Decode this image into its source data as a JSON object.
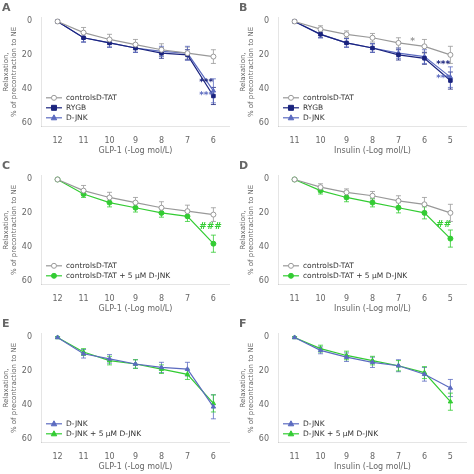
{
  "chart_data": [
    {
      "type": "line",
      "title": "A",
      "xlabel": "GLP-1 (-Log mol/L)",
      "ylabel": "Relaxation,\n% of precontraction to NE",
      "x": [
        12,
        11,
        10,
        9,
        8,
        7,
        6
      ],
      "xlim": [
        12.6,
        5.4
      ],
      "xticks": [
        12,
        11,
        10,
        9,
        8,
        7,
        6
      ],
      "ylim": [
        62,
        -2
      ],
      "yticks": [
        0,
        20,
        40,
        60
      ],
      "grid": false,
      "legend": "lower left",
      "series": [
        {
          "name": "controlsD-TAT",
          "color": "#999999",
          "marker": "circle-open",
          "line_style": "solid",
          "values": [
            0.5,
            7,
            11,
            14,
            17,
            19,
            21
          ],
          "yerr": [
            0.5,
            3,
            3,
            3,
            3.5,
            3.5,
            4
          ]
        },
        {
          "name": "RYGB",
          "color": "#1a237e",
          "marker": "square",
          "line_style": "solid",
          "values": [
            0.5,
            10,
            13,
            16,
            19,
            20,
            44
          ],
          "yerr": [
            0.5,
            2.5,
            2.5,
            2.5,
            3,
            3,
            5
          ]
        },
        {
          "name": "D-JNK",
          "color": "#5c6bc0",
          "marker": "triangle",
          "line_style": "solid",
          "values": [
            0.5,
            10,
            13,
            16,
            18,
            19,
            41
          ],
          "yerr": [
            0.5,
            2.5,
            2.5,
            2.5,
            3,
            4,
            7
          ]
        }
      ],
      "annotations": [
        {
          "text": "***",
          "x": 6.55,
          "y": 36,
          "color": "#1a237e"
        },
        {
          "text": "***",
          "x": 6.55,
          "y": 44,
          "color": "#5c6bc0"
        }
      ]
    },
    {
      "type": "line",
      "title": "B",
      "xlabel": "Insulin (-Log mol/L)",
      "ylabel": "Relaxation,\n% of precontraction to NE",
      "x": [
        11,
        10,
        9,
        8,
        7,
        6,
        5
      ],
      "xlim": [
        11.6,
        4.4
      ],
      "xticks": [
        11,
        10,
        9,
        8,
        7,
        6,
        5
      ],
      "ylim": [
        62,
        -2
      ],
      "yticks": [
        0,
        20,
        40,
        60
      ],
      "grid": false,
      "legend": "lower left",
      "series": [
        {
          "name": "controlsD-TAT",
          "color": "#999999",
          "marker": "circle-open",
          "line_style": "solid",
          "values": [
            0.5,
            5,
            8,
            10,
            13,
            15,
            20
          ],
          "yerr": [
            0.5,
            2,
            2,
            2.5,
            3,
            4,
            5
          ]
        },
        {
          "name": "RYGB",
          "color": "#1a237e",
          "marker": "square",
          "line_style": "solid",
          "values": [
            0.5,
            8,
            13,
            16,
            20,
            22,
            35
          ],
          "yerr": [
            0.5,
            2,
            2.5,
            2.5,
            3,
            3.5,
            5
          ]
        },
        {
          "name": "D-JNK",
          "color": "#5c6bc0",
          "marker": "triangle",
          "line_style": "solid",
          "values": [
            0.5,
            8,
            13,
            16,
            19,
            21,
            33
          ],
          "yerr": [
            0.5,
            2,
            2.5,
            2.5,
            3,
            4,
            6
          ]
        }
      ],
      "annotations": [
        {
          "text": "*",
          "x": 6.55,
          "y": 12,
          "color": "#999999"
        },
        {
          "text": "***",
          "x": 5.55,
          "y": 26,
          "color": "#1a237e"
        },
        {
          "text": "***",
          "x": 5.55,
          "y": 34,
          "color": "#5c6bc0"
        }
      ]
    },
    {
      "type": "line",
      "title": "C",
      "xlabel": "GLP-1 (-Log mol/L)",
      "ylabel": "Relaxation,\n% of precontraction to NE",
      "x": [
        12,
        11,
        10,
        9,
        8,
        7,
        6
      ],
      "xlim": [
        12.6,
        5.4
      ],
      "xticks": [
        12,
        11,
        10,
        9,
        8,
        7,
        6
      ],
      "ylim": [
        62,
        -2
      ],
      "yticks": [
        0,
        20,
        40,
        60
      ],
      "grid": false,
      "legend": "lower left",
      "series": [
        {
          "name": "controlsD-TAT",
          "color": "#999999",
          "marker": "circle-open",
          "line_style": "solid",
          "values": [
            0.5,
            7,
            11,
            14,
            17,
            19,
            21
          ],
          "yerr": [
            0.5,
            3,
            3,
            3,
            3.5,
            3.5,
            4
          ]
        },
        {
          "name": "controlsD-TAT + 5 μM D-JNK",
          "color": "#33cc33",
          "marker": "circle",
          "line_style": "solid",
          "values": [
            0.5,
            9,
            14,
            17,
            20,
            22,
            38
          ],
          "yerr": [
            0.5,
            2,
            2.5,
            2.5,
            2.5,
            3,
            5
          ]
        }
      ],
      "annotations": [
        {
          "text": "###",
          "x": 6.55,
          "y": 28,
          "color": "#33cc33"
        }
      ]
    },
    {
      "type": "line",
      "title": "D",
      "xlabel": "Insulin (-Log mol/L)",
      "ylabel": "Relaxation,\n% of precontraction to NE",
      "x": [
        11,
        10,
        9,
        8,
        7,
        6,
        5
      ],
      "xlim": [
        11.6,
        4.4
      ],
      "xticks": [
        11,
        10,
        9,
        8,
        7,
        6,
        5
      ],
      "ylim": [
        62,
        -2
      ],
      "yticks": [
        0,
        20,
        40,
        60
      ],
      "grid": false,
      "legend": "lower left",
      "series": [
        {
          "name": "controlsD-TAT",
          "color": "#999999",
          "marker": "circle-open",
          "line_style": "solid",
          "values": [
            0.5,
            5,
            8,
            10,
            13,
            15,
            20
          ],
          "yerr": [
            0.5,
            2,
            2,
            2.5,
            3,
            4,
            5
          ]
        },
        {
          "name": "controlsD-TAT + 5 μM D-JNK",
          "color": "#33cc33",
          "marker": "circle",
          "line_style": "solid",
          "values": [
            0.5,
            7,
            11,
            14,
            17,
            20,
            35
          ],
          "yerr": [
            0.5,
            2,
            2.5,
            2.5,
            3,
            3.5,
            5
          ]
        }
      ],
      "annotations": [
        {
          "text": "##",
          "x": 5.55,
          "y": 27,
          "color": "#33cc33"
        }
      ]
    },
    {
      "type": "line",
      "title": "E",
      "xlabel": "GLP-1 (-Log mol/L)",
      "ylabel": "Relaxation,\n% of precontraction to NE",
      "x": [
        12,
        11,
        10,
        9,
        8,
        7,
        6
      ],
      "xlim": [
        12.6,
        5.4
      ],
      "xticks": [
        12,
        11,
        10,
        9,
        8,
        7,
        6
      ],
      "ylim": [
        62,
        -2
      ],
      "yticks": [
        0,
        20,
        40,
        60
      ],
      "grid": false,
      "legend": "lower left",
      "series": [
        {
          "name": "D-JNK",
          "color": "#5c6bc0",
          "marker": "triangle",
          "line_style": "solid",
          "values": [
            0.5,
            10,
            13,
            16,
            18,
            19,
            41
          ],
          "yerr": [
            0.5,
            2.5,
            2.5,
            2.5,
            3,
            4,
            7
          ]
        },
        {
          "name": "D-JNK + 5 μM D-JNK",
          "color": "#33cc33",
          "marker": "triangle",
          "line_style": "solid",
          "values": [
            0.5,
            9,
            14,
            16,
            19,
            22,
            39
          ],
          "yerr": [
            0.5,
            2,
            2.5,
            2.5,
            2.5,
            3,
            5
          ]
        }
      ],
      "annotations": []
    },
    {
      "type": "line",
      "title": "F",
      "xlabel": "Insulin (-Log mol/L)",
      "ylabel": "Relaxation,\n% of precontraction to NE",
      "x": [
        11,
        10,
        9,
        8,
        7,
        6,
        5
      ],
      "xlim": [
        11.6,
        4.4
      ],
      "xticks": [
        11,
        10,
        9,
        8,
        7,
        6,
        5
      ],
      "ylim": [
        62,
        -2
      ],
      "yticks": [
        0,
        20,
        40,
        60
      ],
      "grid": false,
      "legend": "lower left",
      "series": [
        {
          "name": "D-JNK",
          "color": "#5c6bc0",
          "marker": "triangle",
          "line_style": "solid",
          "values": [
            0.5,
            8,
            12,
            15,
            17,
            22,
            30
          ],
          "yerr": [
            0.5,
            2,
            2.5,
            3,
            3.5,
            4,
            5
          ]
        },
        {
          "name": "D-JNK + 5 μM D-JNK",
          "color": "#33cc33",
          "marker": "triangle",
          "line_style": "solid",
          "values": [
            0.5,
            7,
            11,
            14,
            17,
            21,
            38
          ],
          "yerr": [
            0.5,
            2,
            2.5,
            2.5,
            3,
            3.5,
            5
          ]
        }
      ],
      "annotations": []
    }
  ]
}
